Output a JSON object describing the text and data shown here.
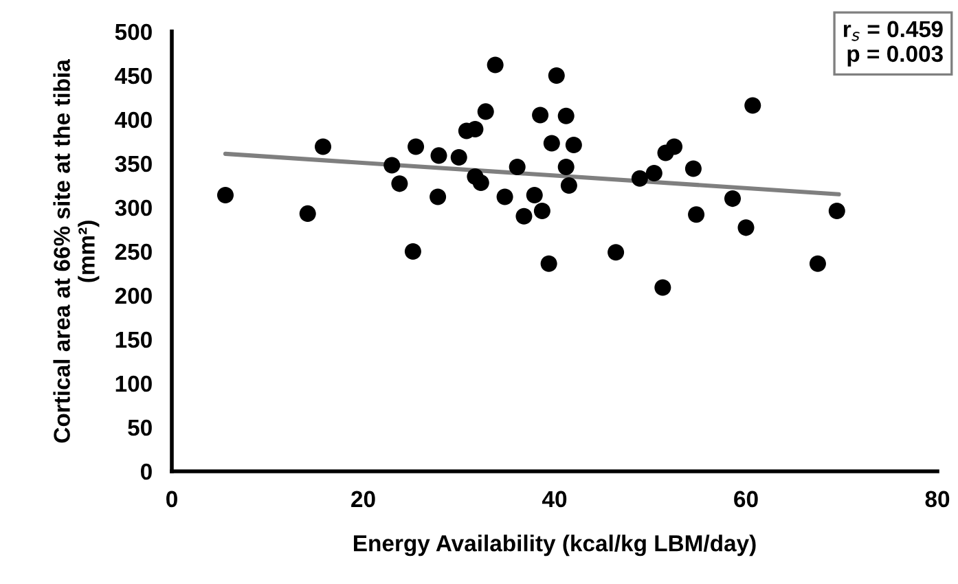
{
  "chart_data": {
    "type": "scatter",
    "xlabel": "Energy Availability (kcal/kg LBM/day)",
    "ylabel": "Cortical area at 66% site at the tibia\n(mm²)",
    "annotations": [
      "r$_{s}$ = 0.459\np = 0.003"
    ],
    "xlim": [
      0,
      80
    ],
    "xticks": [
      0,
      20,
      40,
      60,
      80
    ],
    "ylim": [
      0,
      500
    ],
    "yticks": [
      0,
      50,
      100,
      150,
      200,
      250,
      300,
      350,
      400,
      450,
      500
    ],
    "grid": false,
    "legend": false,
    "marker": "circle",
    "series": [
      {
        "color": "#000000",
        "x": [
          5.6,
          14.2,
          15.8,
          23.0,
          23.8,
          25.5,
          25.2,
          27.9,
          27.8,
          30.0,
          30.8,
          31.7,
          32.8,
          33.8,
          31.7,
          32.3,
          34.8,
          36.1,
          36.8,
          37.9,
          38.5,
          38.7,
          39.4,
          39.7,
          40.2,
          41.2,
          41.2,
          41.5,
          42.0,
          46.4,
          48.9,
          50.4,
          51.3,
          51.6,
          52.5,
          54.5,
          54.8,
          58.6,
          60.0,
          60.7,
          67.5,
          69.5
        ],
        "values": [
          314,
          293,
          369,
          348,
          327,
          369,
          250,
          359,
          312,
          357,
          387,
          389,
          409,
          462,
          335,
          328,
          312,
          346,
          290,
          314,
          405,
          296,
          236,
          373,
          450,
          404,
          346,
          325,
          371,
          249,
          333,
          339,
          209,
          362,
          369,
          344,
          292,
          310,
          277,
          416,
          236,
          296
        ]
      },
      {
        "type": "line",
        "marker": "none",
        "color": "#7f7f7f",
        "x": [
          5.6,
          69.7
        ],
        "values": [
          361,
          315
        ]
      }
    ]
  }
}
